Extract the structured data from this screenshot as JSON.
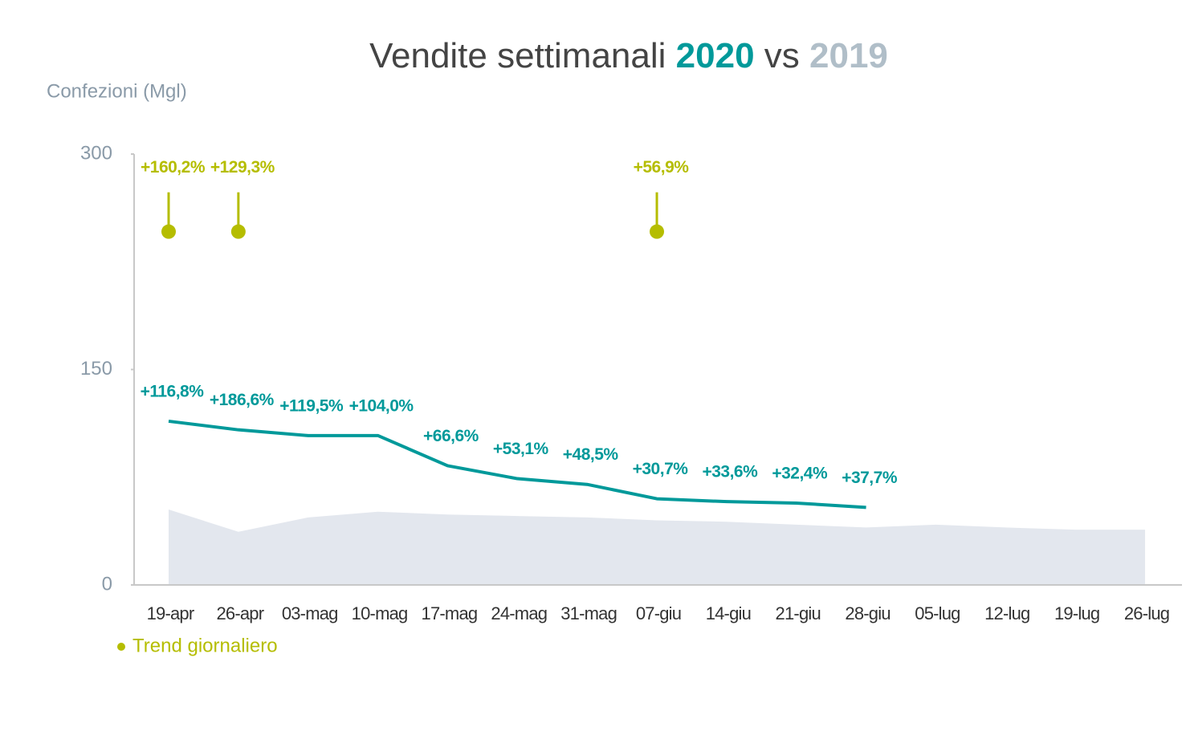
{
  "chart_data": {
    "type": "line",
    "title_parts": [
      "Vendite settimanali",
      "vs"
    ],
    "y_label": "Confezioni (Mgl)",
    "ylim": [
      0,
      300
    ],
    "yticks": [
      0,
      150,
      300
    ],
    "categories": [
      "19-apr",
      "26-apr",
      "03-mag",
      "10-mag",
      "17-mag",
      "24-mag",
      "31-mag",
      "07-giu",
      "14-giu",
      "21-giu",
      "28-giu",
      "05-lug",
      "12-lug",
      "19-lug",
      "26-lug"
    ],
    "series": [
      {
        "name": "2020",
        "color": "#00999a",
        "kind": "line",
        "values": [
          114,
          108,
          104,
          104,
          83,
          74,
          70,
          60,
          58,
          57,
          54,
          null,
          null,
          null,
          null
        ],
        "annotations": [
          "+116,8%",
          "+186,6%",
          "+119,5%",
          "+104,0%",
          "+66,6%",
          "+53,1%",
          "+48,5%",
          "+30,7%",
          "+33,6%",
          "+32,4%",
          "+37,7%",
          null,
          null,
          null,
          null
        ]
      },
      {
        "name": "2019",
        "color": "#b0bec8",
        "fill": "#e3e7ee",
        "kind": "area",
        "values": [
          52.5,
          37,
          47,
          51,
          49,
          48,
          47,
          45,
          44,
          42,
          40,
          42,
          40,
          38.5,
          38.5
        ]
      },
      {
        "name": "Trend giornaliero",
        "color": "#b5bd00",
        "kind": "pin",
        "values": [
          246,
          246,
          null,
          null,
          null,
          null,
          null,
          246,
          null,
          null,
          null,
          null,
          null,
          null,
          null
        ],
        "annotations": [
          "+160,2%",
          "+129,3%",
          null,
          null,
          null,
          null,
          null,
          "+56,9%",
          null,
          null,
          null,
          null,
          null,
          null,
          null
        ]
      }
    ]
  }
}
